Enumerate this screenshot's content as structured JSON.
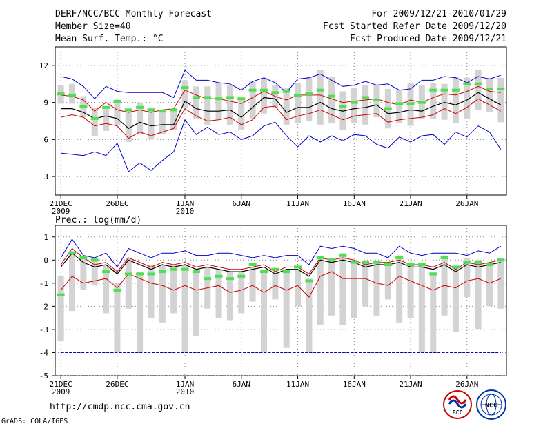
{
  "header": {
    "title": "DERF/NCC/BCC Monthly Forecast",
    "member_size": "Member Size=40",
    "variable": "Mean Surf. Temp.: °C",
    "period": "For 2009/12/21-2010/01/29",
    "fcst_started": "Fcst Started Refer Date 2009/12/20",
    "fcst_produced": "Fcst Produced Date 2009/12/21"
  },
  "footer": {
    "url": "http://cmdp.ncc.cma.gov.cn",
    "credit": "GrADS: COLA/IGES",
    "logo_bcc": "BCC",
    "logo_ncc": "NCC"
  },
  "colors": {
    "ensemble_mean": "#000000",
    "spread_band": "#cc0000",
    "extremes": "#0000cc",
    "box": "#d3d3d3",
    "median_marker": "#4ee04e",
    "grid": "#888888"
  },
  "chart_data": [
    {
      "type": "line",
      "title": "Mean Surf. Temp.: °C",
      "xlabel": "",
      "ylabel": "",
      "ylim": [
        1.5,
        13.5
      ],
      "yticks": [
        3,
        6,
        9,
        12
      ],
      "xlim": [
        0.5,
        40.5
      ],
      "x_ticks": [
        {
          "day": 1,
          "label": "21DEC",
          "year": "2009"
        },
        {
          "day": 6,
          "label": "26DEC"
        },
        {
          "day": 12,
          "label": "1JAN",
          "year": "2010"
        },
        {
          "day": 17,
          "label": "6JAN"
        },
        {
          "day": 22,
          "label": "11JAN"
        },
        {
          "day": 27,
          "label": "16JAN"
        },
        {
          "day": 32,
          "label": "21JAN"
        },
        {
          "day": 37,
          "label": "26JAN"
        }
      ],
      "dashed_baseline": null,
      "series": [
        {
          "name": "max",
          "role": "extremes",
          "values": [
            11.1,
            10.9,
            10.3,
            9.3,
            10.3,
            9.9,
            9.8,
            9.8,
            9.8,
            9.8,
            9.4,
            11.6,
            10.8,
            10.8,
            10.6,
            10.5,
            10.0,
            10.7,
            11.0,
            10.6,
            9.8,
            10.9,
            11.0,
            11.3,
            10.8,
            10.3,
            10.4,
            10.7,
            10.4,
            10.5,
            10.0,
            10.1,
            10.8,
            10.8,
            11.1,
            11.0,
            10.6,
            11.1,
            10.9,
            11.2
          ]
        },
        {
          "name": "upper",
          "role": "spread_band",
          "values": [
            9.6,
            9.5,
            9.2,
            8.3,
            9.0,
            8.4,
            8.2,
            8.4,
            8.2,
            8.4,
            8.5,
            10.0,
            9.6,
            9.3,
            9.3,
            9.1,
            8.9,
            9.4,
            9.9,
            9.5,
            9.2,
            9.6,
            9.6,
            9.6,
            9.3,
            9.0,
            9.1,
            9.2,
            9.3,
            9.0,
            8.8,
            9.2,
            9.0,
            9.4,
            9.7,
            9.6,
            9.9,
            10.3,
            9.9,
            9.8
          ]
        },
        {
          "name": "mean",
          "role": "ensemble_mean",
          "values": [
            8.5,
            8.5,
            8.2,
            7.7,
            7.9,
            7.7,
            6.9,
            7.4,
            7.1,
            7.2,
            7.2,
            9.1,
            8.5,
            8.3,
            8.3,
            8.4,
            7.8,
            8.6,
            9.4,
            9.3,
            8.2,
            8.6,
            8.6,
            9.0,
            8.5,
            8.3,
            8.5,
            8.6,
            8.8,
            8.1,
            8.2,
            8.4,
            8.3,
            8.7,
            9.0,
            8.8,
            9.2,
            9.8,
            9.3,
            8.8
          ]
        },
        {
          "name": "lower",
          "role": "spread_band",
          "values": [
            7.8,
            8.0,
            7.8,
            7.1,
            7.3,
            7.1,
            6.1,
            6.6,
            6.3,
            6.6,
            6.9,
            8.5,
            7.9,
            7.5,
            7.6,
            7.8,
            7.2,
            7.6,
            8.6,
            8.7,
            7.6,
            7.9,
            8.1,
            8.4,
            8.0,
            7.6,
            7.9,
            8.0,
            8.1,
            7.4,
            7.6,
            7.7,
            7.8,
            8.0,
            8.5,
            8.1,
            8.6,
            9.3,
            8.8,
            8.3
          ]
        },
        {
          "name": "min",
          "role": "extremes",
          "values": [
            4.9,
            4.8,
            4.7,
            5.0,
            4.7,
            5.7,
            3.4,
            4.1,
            3.5,
            4.3,
            5.0,
            7.6,
            6.4,
            7.0,
            6.4,
            6.6,
            6.0,
            6.3,
            7.1,
            7.4,
            6.3,
            5.4,
            6.3,
            5.8,
            6.3,
            5.9,
            6.4,
            6.3,
            5.6,
            5.3,
            6.2,
            5.8,
            6.3,
            6.4,
            5.6,
            6.6,
            6.2,
            7.1,
            6.6,
            5.2
          ]
        }
      ],
      "box_low": [
        8.9,
        8.9,
        7.8,
        6.3,
        6.7,
        7.2,
        5.8,
        6.4,
        6.0,
        6.4,
        6.8,
        8.6,
        7.7,
        7.2,
        7.6,
        7.2,
        6.8,
        7.7,
        8.1,
        8.6,
        7.2,
        7.3,
        7.5,
        7.2,
        7.3,
        6.8,
        7.3,
        7.2,
        7.8,
        6.9,
        7.3,
        7.1,
        7.7,
        7.7,
        7.6,
        7.3,
        7.7,
        8.4,
        8.2,
        7.4
      ],
      "box_high": [
        10.4,
        10.5,
        9.5,
        8.6,
        8.7,
        9.0,
        8.4,
        9.0,
        8.6,
        8.4,
        8.5,
        10.8,
        10.3,
        10.3,
        10.6,
        10.4,
        9.2,
        10.7,
        11.0,
        10.4,
        10.2,
        10.6,
        11.1,
        11.6,
        11.1,
        9.9,
        10.2,
        10.4,
        10.4,
        10.1,
        10.0,
        10.6,
        10.4,
        10.6,
        10.5,
        11.1,
        11.0,
        11.6,
        11.0,
        11.0
      ],
      "median": [
        9.7,
        9.6,
        8.7,
        7.7,
        8.6,
        9.1,
        8.4,
        8.6,
        8.4,
        8.3,
        8.4,
        10.2,
        9.4,
        9.4,
        9.3,
        9.4,
        9.3,
        10.0,
        10.0,
        9.8,
        9.9,
        9.6,
        9.7,
        10.0,
        9.5,
        8.7,
        9.0,
        9.4,
        9.2,
        8.5,
        8.9,
        8.9,
        9.0,
        10.0,
        10.0,
        10.0,
        10.5,
        10.5,
        10.1,
        10.1
      ]
    },
    {
      "type": "line",
      "title": "Prec.: log(mm/d)",
      "xlabel": "",
      "ylabel": "",
      "ylim": [
        -5,
        1.5
      ],
      "yticks": [
        -5,
        -4,
        -3,
        -2,
        -1,
        0,
        1
      ],
      "xlim": [
        0.5,
        40.5
      ],
      "x_ticks": [
        {
          "day": 1,
          "label": "21DEC",
          "year": "2009"
        },
        {
          "day": 6,
          "label": "26DEC"
        },
        {
          "day": 12,
          "label": "1JAN",
          "year": "2010"
        },
        {
          "day": 17,
          "label": "6JAN"
        },
        {
          "day": 22,
          "label": "11JAN"
        },
        {
          "day": 27,
          "label": "16JAN"
        },
        {
          "day": 32,
          "label": "21JAN"
        },
        {
          "day": 37,
          "label": "26JAN"
        }
      ],
      "dashed_baseline": -4,
      "series": [
        {
          "name": "max",
          "role": "extremes",
          "values": [
            0.1,
            0.9,
            0.2,
            0.1,
            0.3,
            -0.3,
            0.5,
            0.3,
            0.1,
            0.3,
            0.3,
            0.4,
            0.2,
            0.2,
            0.3,
            0.3,
            0.2,
            0.1,
            0.2,
            0.1,
            0.2,
            0.2,
            -0.2,
            0.6,
            0.5,
            0.6,
            0.5,
            0.3,
            0.3,
            0.1,
            0.6,
            0.3,
            0.2,
            0.3,
            0.3,
            0.3,
            0.2,
            0.4,
            0.3,
            0.6
          ]
        },
        {
          "name": "upper",
          "role": "spread_band",
          "values": [
            -0.2,
            0.5,
            0.1,
            -0.2,
            -0.1,
            -0.5,
            0.1,
            -0.1,
            -0.3,
            -0.1,
            -0.2,
            -0.1,
            -0.3,
            -0.2,
            -0.3,
            -0.4,
            -0.4,
            -0.3,
            -0.2,
            -0.5,
            -0.3,
            -0.3,
            -0.6,
            0.1,
            0.0,
            0.1,
            0.0,
            -0.2,
            -0.1,
            -0.1,
            0.0,
            -0.2,
            -0.2,
            -0.3,
            -0.1,
            -0.4,
            -0.1,
            -0.2,
            -0.1,
            0.0
          ]
        },
        {
          "name": "mean",
          "role": "ensemble_mean",
          "values": [
            -0.3,
            0.3,
            -0.1,
            -0.3,
            -0.2,
            -0.6,
            0.0,
            -0.2,
            -0.4,
            -0.2,
            -0.3,
            -0.2,
            -0.4,
            -0.3,
            -0.4,
            -0.5,
            -0.5,
            -0.4,
            -0.3,
            -0.6,
            -0.4,
            -0.4,
            -0.7,
            0.0,
            -0.1,
            0.0,
            -0.1,
            -0.3,
            -0.2,
            -0.2,
            -0.1,
            -0.3,
            -0.3,
            -0.4,
            -0.2,
            -0.5,
            -0.2,
            -0.3,
            -0.2,
            -0.1
          ]
        },
        {
          "name": "lower",
          "role": "spread_band",
          "values": [
            -1.3,
            -0.7,
            -1.0,
            -0.9,
            -0.8,
            -1.2,
            -0.6,
            -0.8,
            -1.0,
            -1.1,
            -1.3,
            -1.1,
            -1.3,
            -1.2,
            -1.1,
            -1.4,
            -1.3,
            -1.1,
            -1.4,
            -1.1,
            -1.3,
            -1.1,
            -1.6,
            -0.7,
            -0.5,
            -0.8,
            -0.8,
            -0.8,
            -1.0,
            -1.1,
            -0.7,
            -0.9,
            -1.1,
            -1.3,
            -1.1,
            -1.2,
            -0.9,
            -0.8,
            -1.0,
            -0.8
          ]
        },
        {
          "name": "min",
          "role": "extremes",
          "values": [
            -4,
            -4,
            -4,
            -4,
            -4,
            -4,
            -4,
            -4,
            -4,
            -4,
            -4,
            -4,
            -4,
            -4,
            -4,
            -4,
            -4,
            -4,
            -4,
            -4,
            -4,
            -4,
            -4,
            -4,
            -4,
            -4,
            -4,
            -4,
            -4,
            -4,
            -4,
            -4,
            -4,
            -4,
            -4,
            -4,
            -4,
            -4,
            -4,
            -4
          ]
        }
      ],
      "box_low": [
        -3.5,
        -2.2,
        -1.3,
        -1.1,
        -2.3,
        -4.0,
        -2.1,
        -4.0,
        -2.5,
        -2.7,
        -2.3,
        -4.0,
        -3.3,
        -2.1,
        -2.5,
        -2.6,
        -2.3,
        -1.8,
        -4.0,
        -1.7,
        -3.8,
        -2.0,
        -4.0,
        -2.8,
        -2.4,
        -2.8,
        -2.5,
        -2.0,
        -2.4,
        -1.7,
        -2.7,
        -2.5,
        -4.0,
        -4.0,
        -2.4,
        -3.1,
        -1.6,
        -3.0,
        -2.0,
        -2.1
      ],
      "box_high": [
        -0.7,
        0.4,
        0.2,
        0.1,
        -0.2,
        -1.0,
        0.1,
        -0.5,
        -0.2,
        -0.2,
        -0.2,
        -0.2,
        -0.5,
        -0.3,
        -0.4,
        -0.5,
        -0.5,
        -0.3,
        -0.4,
        -0.5,
        -0.4,
        -0.4,
        -0.8,
        0.1,
        0.1,
        0.3,
        0.0,
        -0.1,
        -0.1,
        -0.2,
        0.2,
        -0.1,
        -0.2,
        -0.5,
        0.2,
        -0.3,
        0.1,
        0.0,
        -0.1,
        0.1
      ],
      "median": [
        -1.5,
        0.3,
        0.1,
        0.0,
        -0.5,
        -1.3,
        -0.6,
        -0.6,
        -0.6,
        -0.5,
        -0.4,
        -0.4,
        -0.5,
        -0.8,
        -0.7,
        -0.8,
        -0.7,
        -0.2,
        -0.5,
        -0.4,
        -0.5,
        -0.3,
        -0.9,
        0.1,
        0.0,
        0.2,
        -0.1,
        -0.1,
        -0.1,
        -0.2,
        0.1,
        -0.2,
        -0.2,
        -0.6,
        0.1,
        -0.3,
        -0.1,
        -0.1,
        -0.2,
        0.0
      ]
    }
  ]
}
